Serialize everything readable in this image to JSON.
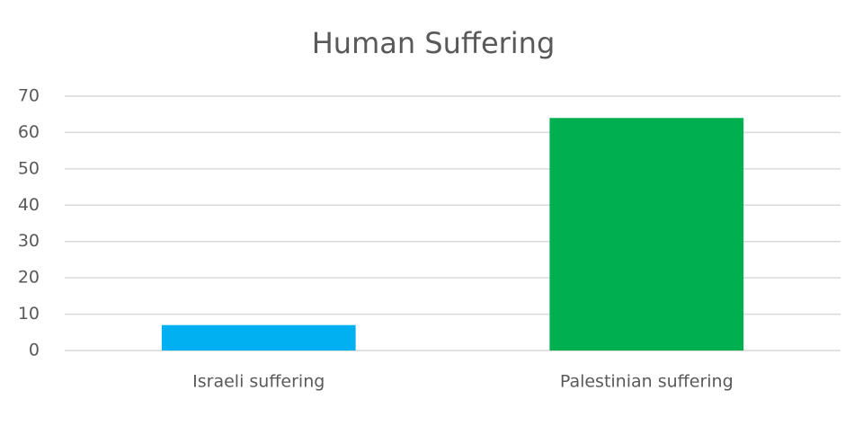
{
  "chart_data": {
    "type": "bar",
    "title": "Human Suffering",
    "categories": [
      "Israeli suffering",
      "Palestinian suffering"
    ],
    "values": [
      7,
      64
    ],
    "colors": [
      "#00b0f0",
      "#00b050"
    ],
    "ylim": [
      0,
      70
    ],
    "yticks": [
      0,
      10,
      20,
      30,
      40,
      50,
      60,
      70
    ],
    "grid": true
  }
}
